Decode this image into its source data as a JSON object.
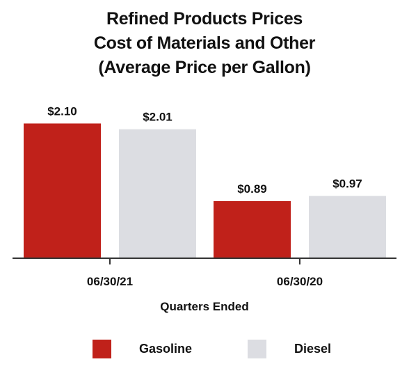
{
  "title_lines": [
    "Refined Products Prices",
    "Cost of Materials and Other",
    "(Average Price per Gallon)"
  ],
  "colors": {
    "gasoline": "#c0211a",
    "diesel": "#dcdde2",
    "axis": "#333333"
  },
  "chart_data": {
    "type": "bar",
    "title": "Refined Products Prices Cost of Materials and Other (Average Price per Gallon)",
    "categories": [
      "06/30/21",
      "06/30/20"
    ],
    "xlabel": "Quarters Ended",
    "ylabel": "",
    "ylim": [
      0,
      2.3
    ],
    "grid": false,
    "legend_position": "bottom",
    "series": [
      {
        "name": "Gasoline",
        "values": [
          2.1,
          0.89
        ],
        "labels": [
          "$2.10",
          "$0.89"
        ]
      },
      {
        "name": "Diesel",
        "values": [
          2.01,
          0.97
        ],
        "labels": [
          "$2.01",
          "$0.97"
        ]
      }
    ]
  }
}
